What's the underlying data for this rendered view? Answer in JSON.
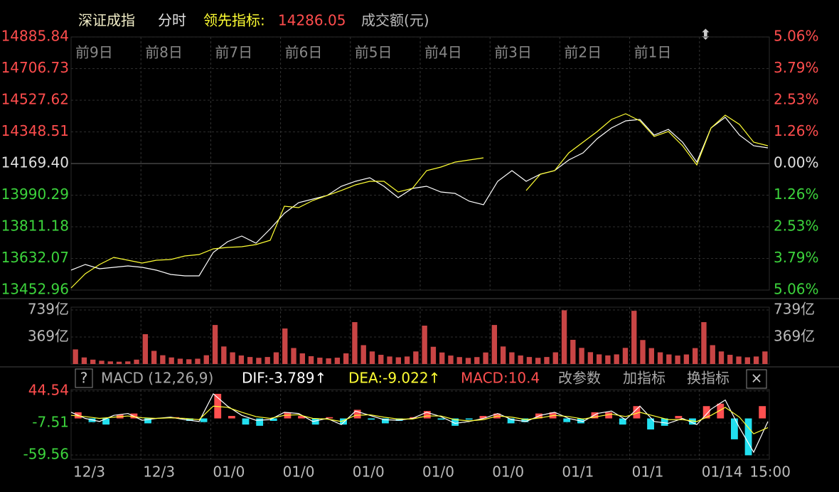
{
  "header": {
    "index_name": "深证成指",
    "mode": "分时",
    "indicator_label": "领先指标:",
    "indicator_value": "14286.05",
    "volume_label": "成交额(元)"
  },
  "chart_data": [
    {
      "type": "line",
      "day_labels": [
        "前9日",
        "前8日",
        "前7日",
        "前6日",
        "前5日",
        "前4日",
        "前3日",
        "前2日",
        "前1日"
      ],
      "categories": [
        null,
        null,
        null,
        null,
        null,
        null,
        null,
        null,
        null,
        null,
        null,
        null,
        null,
        null,
        null,
        null,
        null,
        null,
        null,
        null,
        null,
        null,
        null,
        null,
        null,
        null,
        null,
        null,
        null,
        null,
        null,
        null,
        null,
        null,
        null,
        null,
        null,
        null,
        null,
        null,
        null,
        null,
        null,
        null,
        null,
        null,
        null,
        null,
        null,
        null
      ],
      "series": [
        {
          "color": "#ffffff",
          "values": [
            13565.7,
            13597.9,
            13573.7,
            13581.8,
            13589.8,
            13581.8,
            13565.7,
            13541.5,
            13533.5,
            13533.5,
            13666.3,
            13726.7,
            13758.9,
            13718.6,
            13799.1,
            13887.7,
            13948.0,
            13968.2,
            13988.3,
            14040.6,
            14068.8,
            14088.9,
            14040.6,
            13976.2,
            14028.5,
            14040.6,
            14008.4,
            14000.4,
            13956.1,
            13936.0,
            14068.8,
            14129.2,
            14068.8,
            14109.1,
            14129.2,
            14189.6,
            14229.8,
            14310.3,
            14370.7,
            14410.9,
            14419.0,
            14330.4,
            14362.6,
            14290.2,
            14177.5,
            14370.7,
            14431.1,
            14330.4,
            14270.1,
            14258.0
          ]
        },
        {
          "color": "#ffff33",
          "values": [
            13465.0,
            13545.5,
            13597.9,
            13638.1,
            13622.0,
            13605.9,
            13622.0,
            13626.0,
            13646.2,
            13654.2,
            13686.4,
            13694.5,
            13698.5,
            13710.6,
            13734.7,
            13927.9,
            13919.9,
            13960.1,
            13988.3,
            14016.5,
            14048.7,
            14068.8,
            14068.8,
            14008.4,
            14028.5,
            14129.2,
            14149.3,
            14177.5,
            14189.6,
            14201.6,
            null,
            null,
            14016.5,
            14109.1,
            14129.2,
            14229.8,
            14290.2,
            14350.6,
            14419.0,
            14451.2,
            14410.9,
            14322.4,
            14350.6,
            14270.1,
            14161.4,
            14370.7,
            14443.1,
            14390.8,
            14290.2,
            14270.1
          ]
        }
      ],
      "ylim": [
        13452.96,
        14885.84
      ],
      "yticks": [
        14885.84,
        14706.73,
        14527.62,
        14348.51,
        {
          "value": 14169.4,
          "label": "14169.40"
        },
        13990.29,
        13811.18,
        13632.07,
        13452.96
      ],
      "y2lim": [
        -5.06,
        5.06
      ],
      "y2ticks": [
        {
          "value": 5.06,
          "label": "5.06%"
        },
        {
          "value": 3.79,
          "label": "3.79%"
        },
        {
          "value": 2.53,
          "label": "2.53%"
        },
        {
          "value": 1.26,
          "label": "1.26%"
        },
        {
          "value": 0,
          "label": "0.00%"
        },
        {
          "value": -1.26,
          "label": "1.26%"
        },
        {
          "value": -2.53,
          "label": "2.53%"
        },
        {
          "value": -3.79,
          "label": "3.79%"
        },
        {
          "value": -5.06,
          "label": "5.06%"
        }
      ],
      "grid": true
    },
    {
      "type": "bar",
      "color": "#c94545",
      "ylim": [
        0,
        739
      ],
      "yticks": [
        {
          "value": 739,
          "label": "739亿"
        },
        {
          "value": 369,
          "label": "369亿"
        }
      ],
      "values": [
        200,
        90,
        60,
        45,
        36,
        32,
        36,
        60,
        408,
        180,
        120,
        90,
        73,
        65,
        73,
        120,
        534,
        240,
        160,
        117,
        96,
        85,
        96,
        160,
        486,
        219,
        146,
        107,
        87,
        78,
        87,
        146,
        573,
        258,
        172,
        126,
        103,
        92,
        103,
        172,
        525,
        236,
        158,
        116,
        95,
        84,
        95,
        158,
        534,
        240,
        160,
        117,
        96,
        85,
        96,
        160,
        735,
        331,
        221,
        162,
        132,
        118,
        132,
        221,
        728,
        328,
        218,
        160,
        131,
        116,
        131,
        218,
        573,
        258,
        172,
        126,
        103,
        92,
        103,
        172
      ]
    },
    {
      "type": "macd",
      "title": "MACD (12,26,9)",
      "help": "?",
      "dif_label": "DIF:-3.789↑",
      "dea_label": "DEA:-9.022↑",
      "macd_label": "MACD:10.4",
      "actions": [
        "改参数",
        "加指标",
        "换指标"
      ],
      "close": "×",
      "ylim": [
        -59.56,
        44.54
      ],
      "yticks": [
        44.54,
        -7.51,
        -59.56
      ],
      "series": [
        {
          "color": "#ffffff",
          "values": [
            10,
            0,
            -5,
            5,
            8,
            -3,
            0,
            2,
            -2,
            -5,
            40,
            20,
            5,
            -3,
            -2,
            10,
            8,
            -5,
            0,
            -10,
            12,
            5,
            -2,
            -3,
            0,
            10,
            3,
            -8,
            -5,
            0,
            8,
            -2,
            -5,
            5,
            10,
            0,
            -5,
            8,
            12,
            -2,
            20,
            -5,
            -8,
            0,
            -10,
            15,
            30,
            -15,
            -55,
            -5
          ]
        },
        {
          "color": "#ffff33",
          "values": [
            5,
            3,
            0,
            2,
            4,
            1,
            0,
            1,
            0,
            -2,
            20,
            18,
            10,
            3,
            0,
            5,
            6,
            0,
            -1,
            -5,
            5,
            6,
            2,
            -1,
            -1,
            4,
            4,
            -2,
            -4,
            -2,
            4,
            2,
            -2,
            1,
            5,
            3,
            -1,
            3,
            7,
            3,
            10,
            4,
            -2,
            -2,
            -5,
            5,
            18,
            2,
            -25,
            -15
          ]
        }
      ],
      "histogram": {
        "up_color": "#ff5050",
        "down_color": "#22e0f0",
        "values": [
          10,
          -6,
          -10,
          6,
          8,
          -8,
          0,
          2,
          -4,
          -6,
          40,
          4,
          -10,
          -12,
          -4,
          10,
          4,
          -10,
          2,
          -10,
          14,
          -2,
          -8,
          -4,
          2,
          12,
          -2,
          -12,
          -2,
          4,
          8,
          -8,
          -6,
          8,
          10,
          -6,
          -8,
          10,
          10,
          -10,
          20,
          -18,
          -12,
          4,
          -10,
          20,
          24,
          -34,
          -60,
          20
        ]
      },
      "x_labels": [
        "12/3",
        "12/3",
        "01/0",
        "01/0",
        "01/0",
        "01/0",
        "01/0",
        "01/1",
        "01/1",
        "01/14",
        "15:00"
      ]
    }
  ]
}
